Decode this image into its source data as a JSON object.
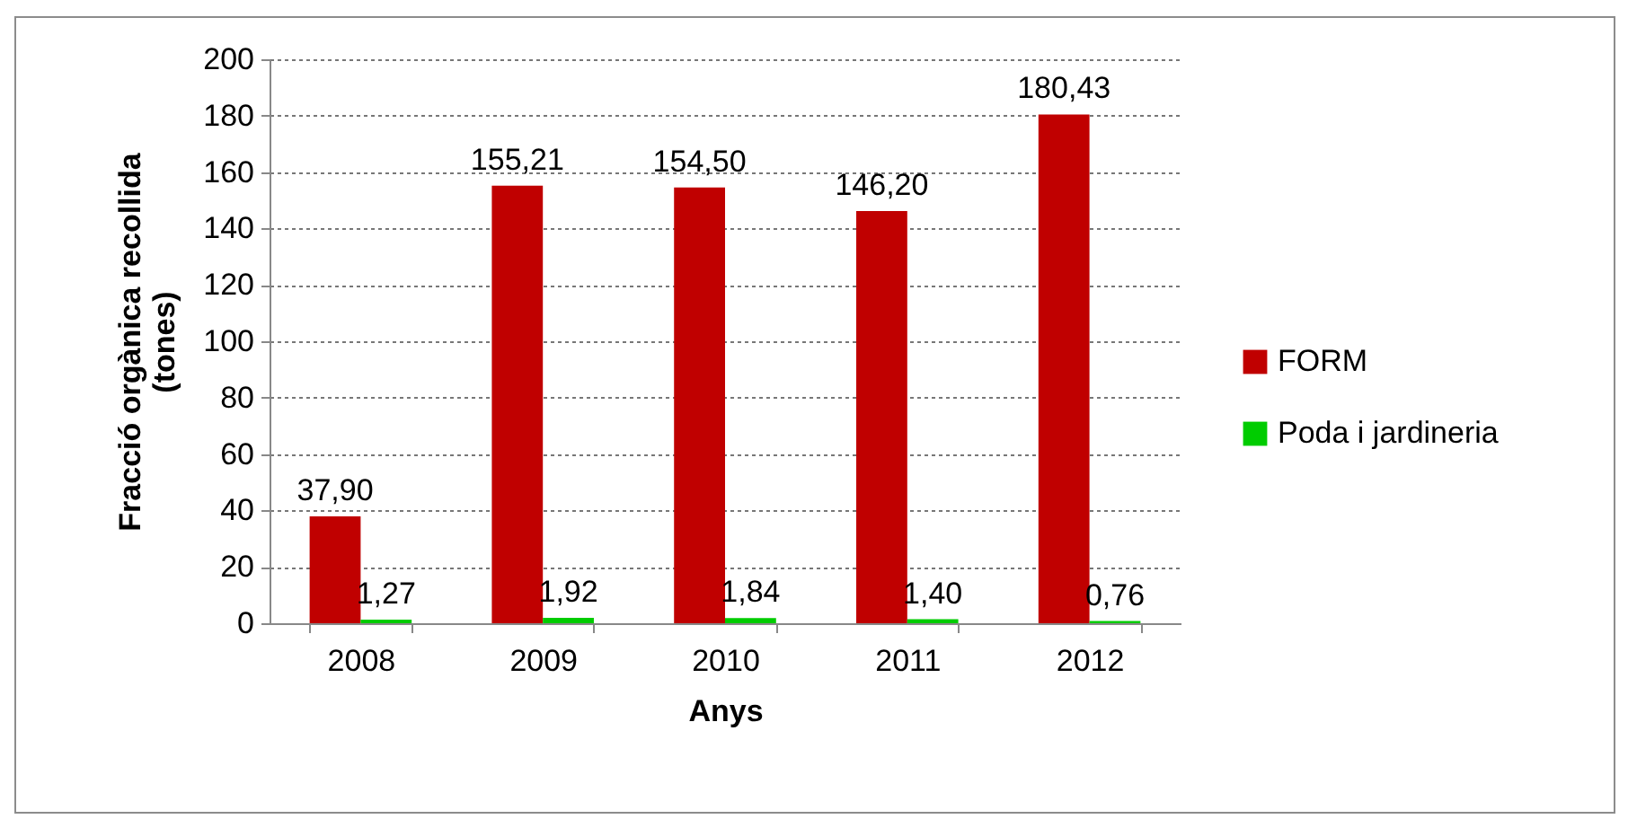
{
  "chart_data": {
    "type": "bar",
    "xlabel": "Anys",
    "ylabel": "Fracció orgànica recollida\n(tones)",
    "categories": [
      "2008",
      "2009",
      "2010",
      "2011",
      "2012"
    ],
    "series": [
      {
        "name": "FORM",
        "color": "#c00000",
        "values": [
          37.9,
          155.21,
          154.5,
          146.2,
          180.43
        ],
        "value_labels": [
          "37,90",
          "155,21",
          "154,50",
          "146,20",
          "180,43"
        ]
      },
      {
        "name": "Poda i jardineria",
        "color": "#00cc00",
        "values": [
          1.27,
          1.92,
          1.84,
          1.4,
          0.76
        ],
        "value_labels": [
          "1,27",
          "1,92",
          "1,84",
          "1,40",
          "0,76"
        ]
      }
    ],
    "ylim": [
      0,
      200
    ],
    "yticks": [
      0,
      20,
      40,
      60,
      80,
      100,
      120,
      140,
      160,
      180,
      200
    ],
    "grid": "y",
    "legend": "right"
  }
}
